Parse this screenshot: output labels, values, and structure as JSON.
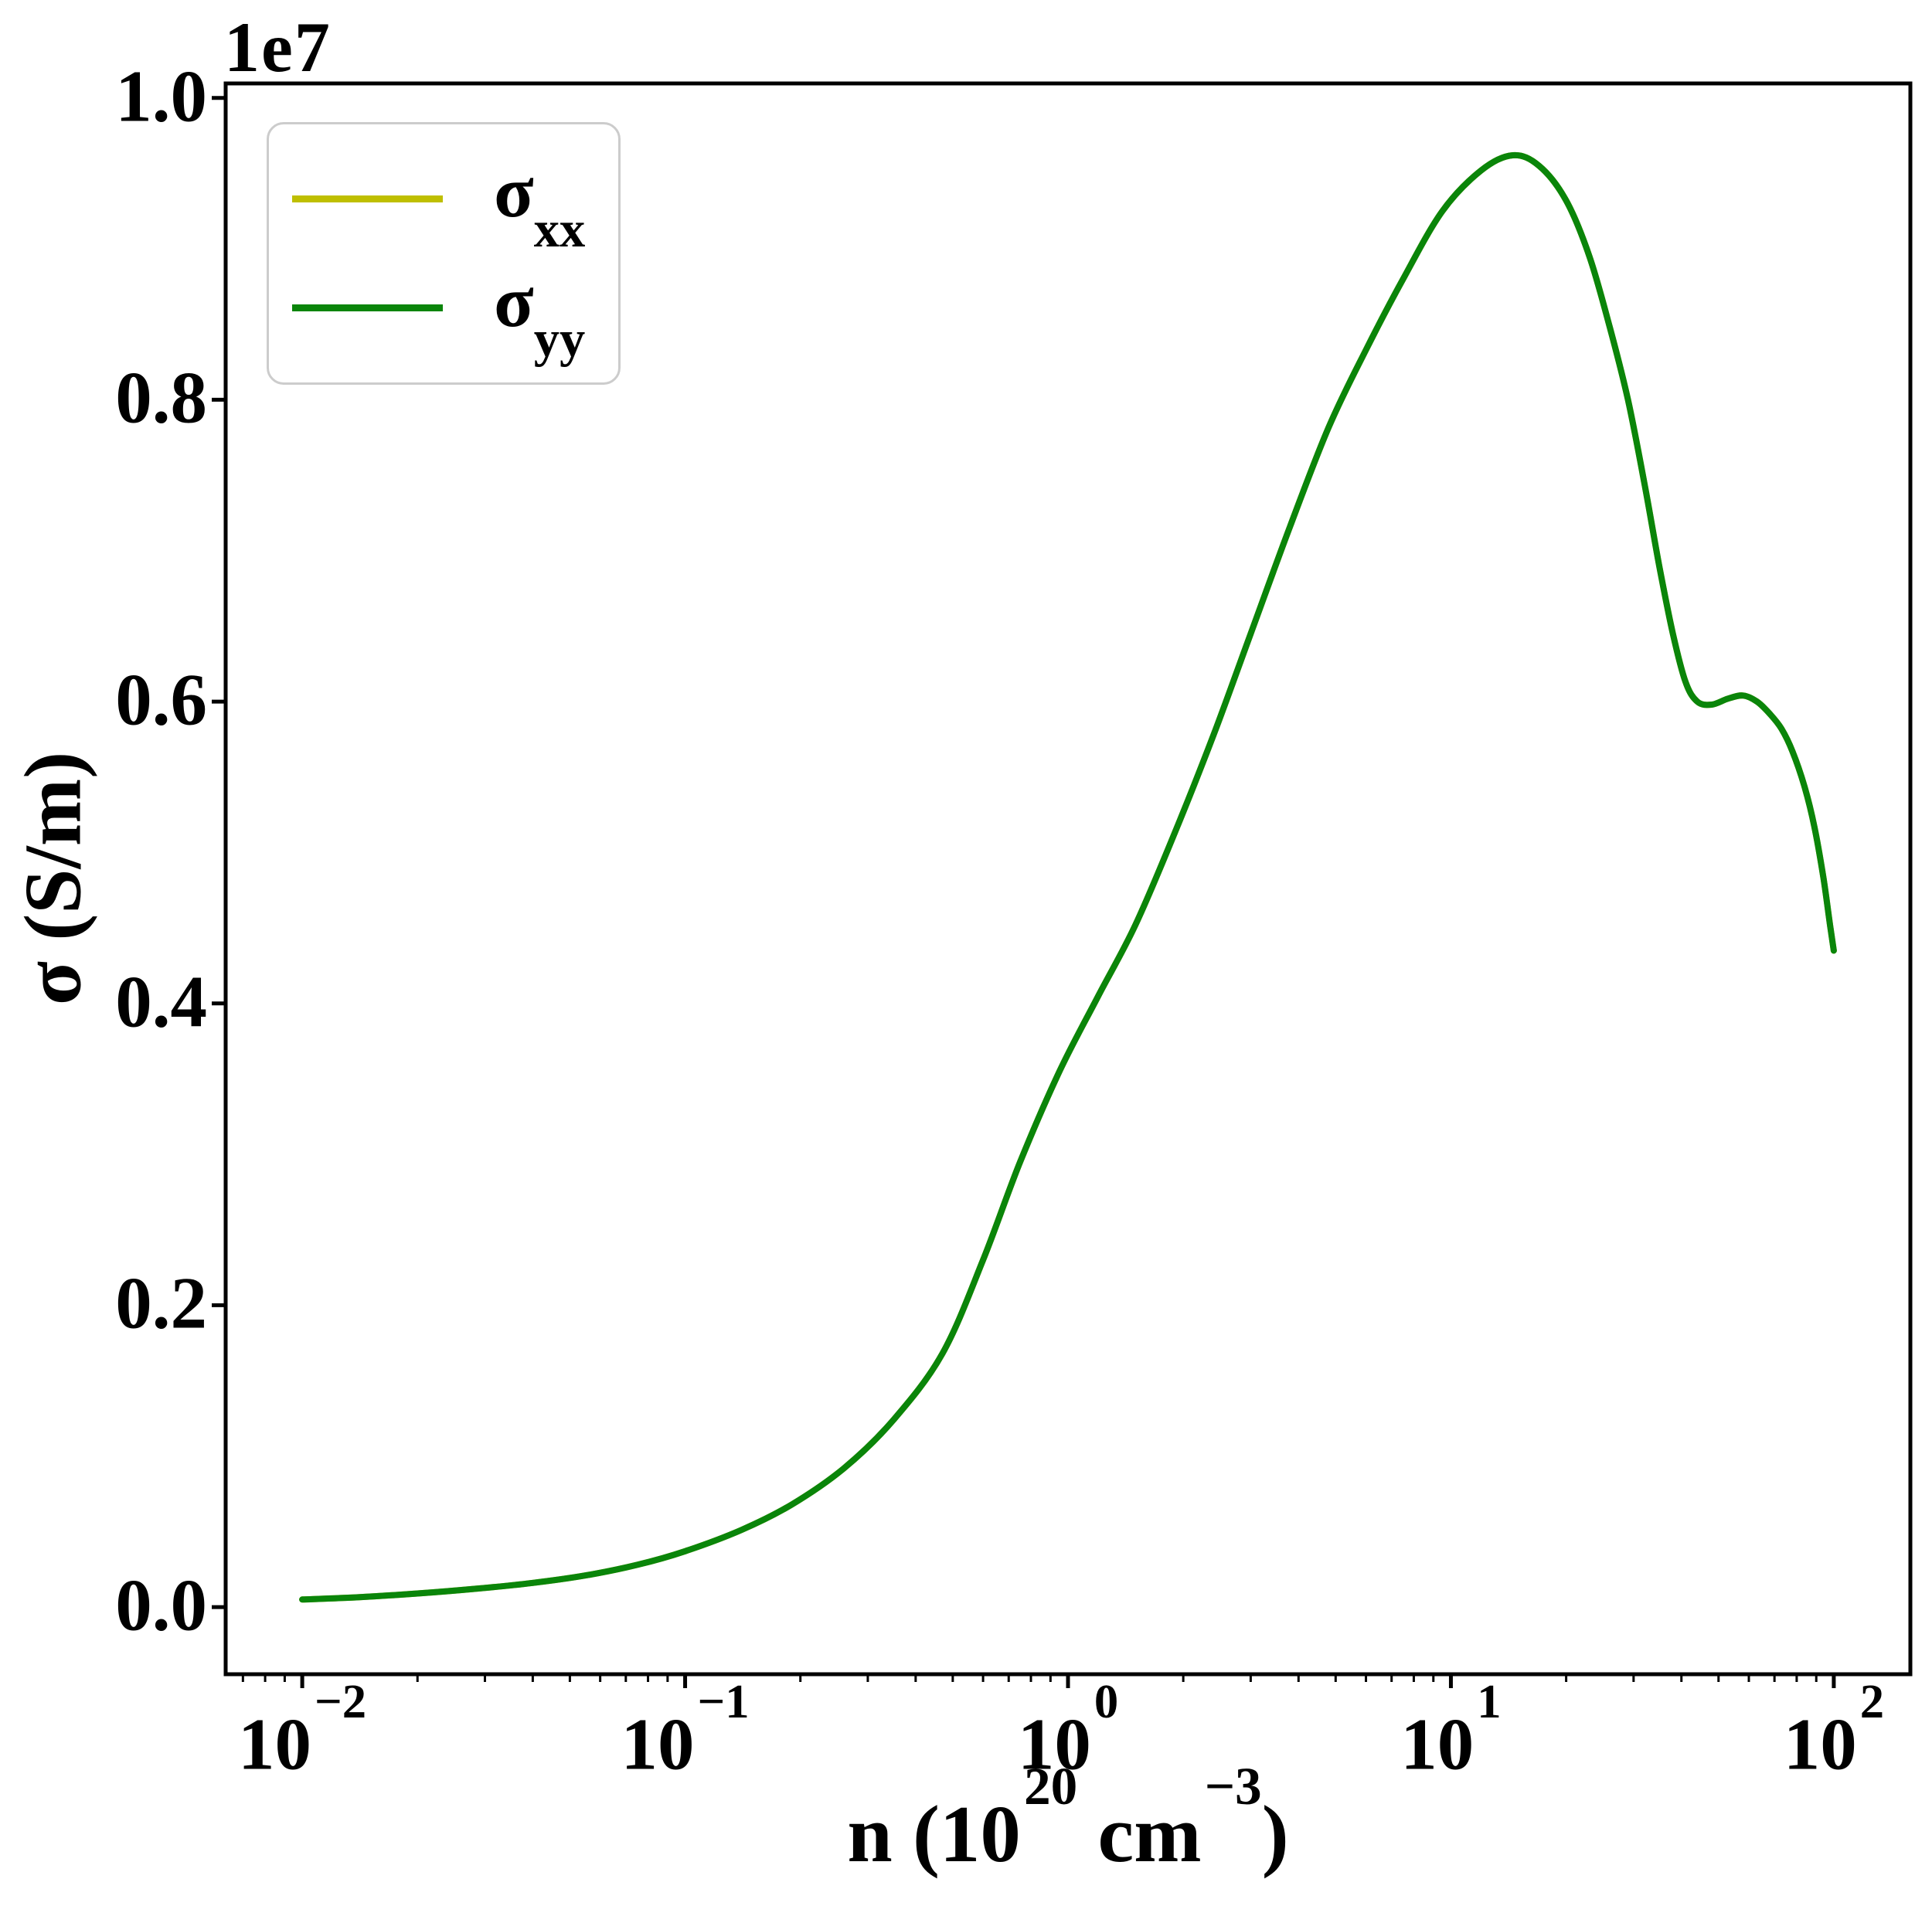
{
  "chart_data": {
    "type": "line",
    "title": "",
    "xlabel": "n (10^20 cm^-3)",
    "xlabel_parts": {
      "prefix": "n (10",
      "sup1": "20",
      "mid": " cm",
      "sup2": "−3",
      "suffix": ")"
    },
    "ylabel": "σ (S/m)",
    "offset_text": "1e7",
    "x_scale": "log",
    "y_scale": "linear",
    "grid": false,
    "legend_position": "upper left",
    "xlim_log": [
      -2.2,
      2.2
    ],
    "ylim": [
      -445000,
      10096000
    ],
    "xticks": [
      {
        "value": 0.01,
        "base": "10",
        "exp": "−2",
        "label": "10^-2"
      },
      {
        "value": 0.1,
        "base": "10",
        "exp": "−1",
        "label": "10^-1"
      },
      {
        "value": 1,
        "base": "10",
        "exp": "0",
        "label": "10^0"
      },
      {
        "value": 10,
        "base": "10",
        "exp": "1",
        "label": "10^1"
      },
      {
        "value": 100,
        "base": "10",
        "exp": "2",
        "label": "10^2"
      }
    ],
    "yticks": [
      {
        "value": 0,
        "label": "0.0"
      },
      {
        "value": 2000000,
        "label": "0.2"
      },
      {
        "value": 4000000,
        "label": "0.4"
      },
      {
        "value": 6000000,
        "label": "0.6"
      },
      {
        "value": 8000000,
        "label": "0.8"
      },
      {
        "value": 10000000,
        "label": "1.0"
      }
    ],
    "legend": [
      {
        "label_base": "σ",
        "label_sub": "xx",
        "color": "#bfbf00"
      },
      {
        "label_base": "σ",
        "label_sub": "yy",
        "color": "#0a850a"
      }
    ],
    "series": [
      {
        "name": "sigma_xx",
        "color": "#bfbf00",
        "points": [
          [
            0.01,
            50000
          ],
          [
            0.014,
            65000
          ],
          [
            0.02,
            90000
          ],
          [
            0.028,
            120000
          ],
          [
            0.04,
            160000
          ],
          [
            0.055,
            210000
          ],
          [
            0.075,
            280000
          ],
          [
            0.1,
            370000
          ],
          [
            0.14,
            510000
          ],
          [
            0.19,
            680000
          ],
          [
            0.26,
            920000
          ],
          [
            0.35,
            1240000
          ],
          [
            0.47,
            1680000
          ],
          [
            0.6,
            2300000
          ],
          [
            0.75,
            2950000
          ],
          [
            0.95,
            3550000
          ],
          [
            1.2,
            4050000
          ],
          [
            1.5,
            4520000
          ],
          [
            1.9,
            5130000
          ],
          [
            2.4,
            5780000
          ],
          [
            3.0,
            6450000
          ],
          [
            3.8,
            7160000
          ],
          [
            4.8,
            7820000
          ],
          [
            6.0,
            8330000
          ],
          [
            7.5,
            8800000
          ],
          [
            9.5,
            9250000
          ],
          [
            12,
            9520000
          ],
          [
            14.5,
            9620000
          ],
          [
            17,
            9550000
          ],
          [
            20,
            9320000
          ],
          [
            23,
            8950000
          ],
          [
            26,
            8480000
          ],
          [
            29,
            8000000
          ],
          [
            32,
            7450000
          ],
          [
            35,
            6900000
          ],
          [
            38,
            6450000
          ],
          [
            41,
            6130000
          ],
          [
            44,
            6000000
          ],
          [
            48,
            5980000
          ],
          [
            53,
            6020000
          ],
          [
            58,
            6040000
          ],
          [
            63,
            6000000
          ],
          [
            68,
            5920000
          ],
          [
            73,
            5820000
          ],
          [
            78,
            5670000
          ],
          [
            84,
            5430000
          ],
          [
            89,
            5170000
          ],
          [
            94,
            4830000
          ],
          [
            98,
            4500000
          ],
          [
            100,
            4350000
          ]
        ]
      },
      {
        "name": "sigma_yy",
        "color": "#0a850a",
        "points": [
          [
            0.01,
            50000
          ],
          [
            0.014,
            65000
          ],
          [
            0.02,
            90000
          ],
          [
            0.028,
            120000
          ],
          [
            0.04,
            160000
          ],
          [
            0.055,
            210000
          ],
          [
            0.075,
            280000
          ],
          [
            0.1,
            370000
          ],
          [
            0.14,
            510000
          ],
          [
            0.19,
            680000
          ],
          [
            0.26,
            920000
          ],
          [
            0.35,
            1240000
          ],
          [
            0.47,
            1680000
          ],
          [
            0.6,
            2300000
          ],
          [
            0.75,
            2950000
          ],
          [
            0.95,
            3550000
          ],
          [
            1.2,
            4050000
          ],
          [
            1.5,
            4520000
          ],
          [
            1.9,
            5130000
          ],
          [
            2.4,
            5780000
          ],
          [
            3.0,
            6450000
          ],
          [
            3.8,
            7160000
          ],
          [
            4.8,
            7820000
          ],
          [
            6.0,
            8330000
          ],
          [
            7.5,
            8800000
          ],
          [
            9.5,
            9250000
          ],
          [
            12,
            9520000
          ],
          [
            14.5,
            9620000
          ],
          [
            17,
            9550000
          ],
          [
            20,
            9320000
          ],
          [
            23,
            8950000
          ],
          [
            26,
            8480000
          ],
          [
            29,
            8000000
          ],
          [
            32,
            7450000
          ],
          [
            35,
            6900000
          ],
          [
            38,
            6450000
          ],
          [
            41,
            6130000
          ],
          [
            44,
            6000000
          ],
          [
            48,
            5980000
          ],
          [
            53,
            6020000
          ],
          [
            58,
            6040000
          ],
          [
            63,
            6000000
          ],
          [
            68,
            5920000
          ],
          [
            73,
            5820000
          ],
          [
            78,
            5670000
          ],
          [
            84,
            5430000
          ],
          [
            89,
            5170000
          ],
          [
            94,
            4830000
          ],
          [
            98,
            4500000
          ],
          [
            100,
            4350000
          ]
        ]
      }
    ]
  }
}
